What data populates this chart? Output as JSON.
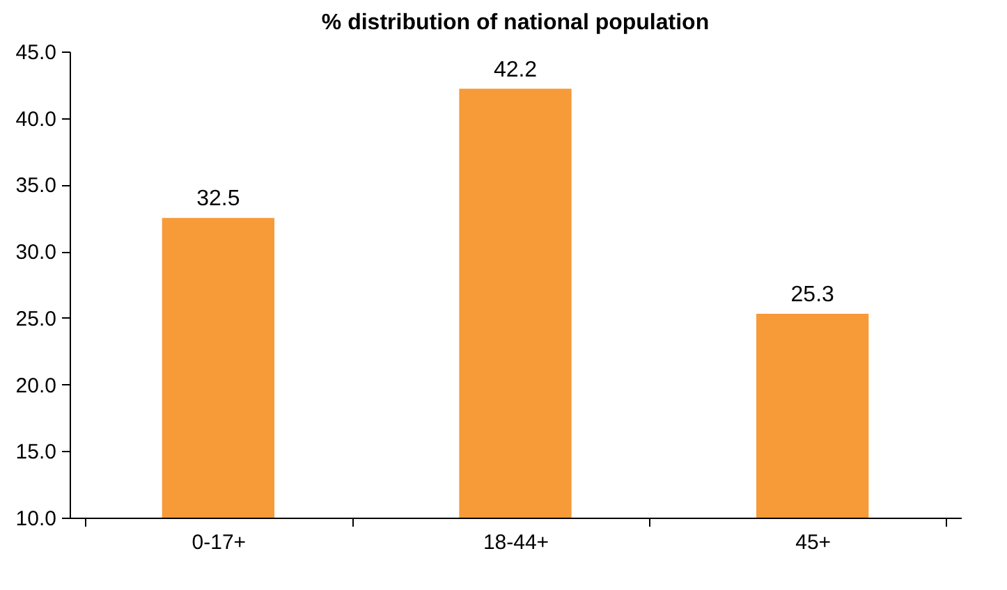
{
  "chart_data": {
    "type": "bar",
    "title": "% distribution of national population",
    "categories": [
      "0-17+",
      "18-44+",
      "45+"
    ],
    "values": [
      32.5,
      42.2,
      25.3
    ],
    "color": "#f79a38",
    "ylim": [
      10,
      45
    ],
    "yticks": [
      {
        "value": 10,
        "label": "10.0"
      },
      {
        "value": 15,
        "label": "15.0"
      },
      {
        "value": 20,
        "label": "20.0"
      },
      {
        "value": 25,
        "label": "25.0"
      },
      {
        "value": 30,
        "label": "30.0"
      },
      {
        "value": 35,
        "label": "35.0"
      },
      {
        "value": 40,
        "label": "40.0"
      },
      {
        "value": 45,
        "label": "45.0"
      }
    ],
    "grid": false,
    "data_labels": true
  }
}
